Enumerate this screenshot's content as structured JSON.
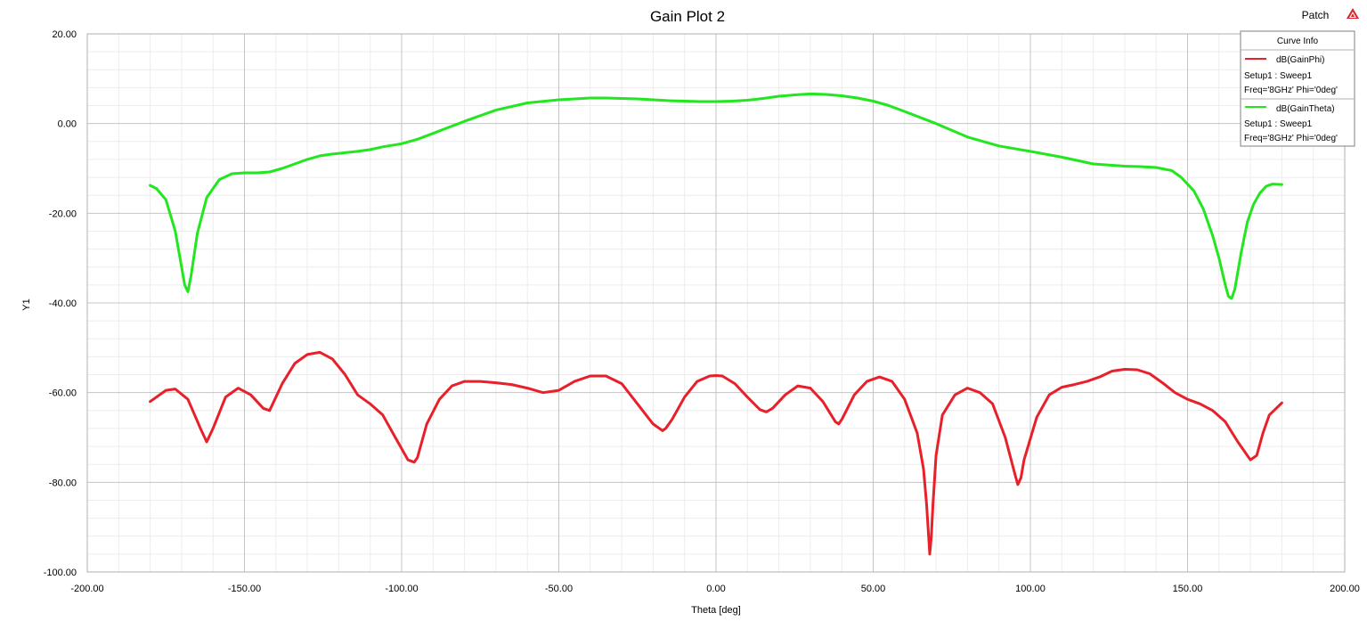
{
  "project_name": "Patch",
  "chart_data": {
    "type": "line",
    "title": "Gain Plot 2",
    "xlabel": "Theta [deg]",
    "ylabel": "Y1",
    "xlim": [
      -200,
      200
    ],
    "ylim": [
      -100,
      20
    ],
    "x_ticks": [
      -200,
      -150,
      -100,
      -50,
      0,
      50,
      100,
      150,
      200
    ],
    "x_tick_labels": [
      "-200.00",
      "-150.00",
      "-100.00",
      "-50.00",
      "0.00",
      "50.00",
      "100.00",
      "150.00",
      "200.00"
    ],
    "y_ticks": [
      20,
      0,
      -20,
      -40,
      -60,
      -80,
      -100
    ],
    "y_tick_labels": [
      "20.00",
      "0.00",
      "-20.00",
      "-40.00",
      "-60.00",
      "-80.00",
      "-100.00"
    ],
    "grid": true,
    "legend": {
      "title": "Curve Info",
      "placement": "top-right"
    },
    "series": [
      {
        "name": "dB(GainPhi)",
        "line1": "Setup1 : Sweep1",
        "line2": "Freq='8GHz' Phi='0deg'",
        "color": "#e8202a",
        "x": [
          -180,
          -175,
          -172,
          -168,
          -164,
          -162,
          -160,
          -156,
          -152,
          -148,
          -144,
          -142,
          -138,
          -134,
          -130,
          -126,
          -122,
          -118,
          -114,
          -110,
          -106,
          -102,
          -98,
          -96,
          -95,
          -94,
          -92,
          -88,
          -84,
          -80,
          -75,
          -70,
          -65,
          -60,
          -55,
          -50,
          -45,
          -40,
          -35,
          -30,
          -25,
          -20,
          -17,
          -16,
          -14,
          -10,
          -6,
          -2,
          0,
          2,
          6,
          10,
          14,
          16,
          18,
          22,
          26,
          30,
          34,
          38,
          39,
          40,
          44,
          48,
          52,
          56,
          60,
          64,
          66,
          67,
          68,
          68.5,
          69,
          70,
          72,
          76,
          80,
          84,
          88,
          92,
          95,
          96,
          97,
          98,
          102,
          106,
          110,
          114,
          118,
          122,
          126,
          130,
          134,
          138,
          142,
          146,
          150,
          154,
          158,
          162,
          166,
          170,
          172,
          174,
          176,
          180
        ],
        "y": [
          -62,
          -59.5,
          -59.2,
          -61.5,
          -68,
          -71,
          -68,
          -61,
          -59,
          -60.5,
          -63.5,
          -64,
          -58,
          -53.5,
          -51.5,
          -51,
          -52.5,
          -56,
          -60.5,
          -62.5,
          -65,
          -70,
          -75,
          -75.5,
          -74.5,
          -72,
          -67,
          -61.5,
          -58.5,
          -57.5,
          -57.5,
          -57.8,
          -58.2,
          -59,
          -60,
          -59.5,
          -57.5,
          -56.3,
          -56.3,
          -58,
          -62.5,
          -67,
          -68.5,
          -68,
          -66,
          -61,
          -57.5,
          -56.3,
          -56.2,
          -56.3,
          -58,
          -61,
          -63.8,
          -64.3,
          -63.5,
          -60.5,
          -58.5,
          -59,
          -62,
          -66.5,
          -67,
          -66,
          -60.5,
          -57.5,
          -56.5,
          -57.5,
          -61.5,
          -69,
          -77,
          -85,
          -96,
          -92,
          -85,
          -74,
          -65,
          -60.5,
          -59,
          -60,
          -62.5,
          -70,
          -78,
          -80.5,
          -79,
          -75,
          -65.5,
          -60.5,
          -58.8,
          -58.2,
          -57.5,
          -56.5,
          -55.2,
          -54.8,
          -54.9,
          -55.8,
          -57.8,
          -60,
          -61.5,
          -62.5,
          -64,
          -66.5,
          -71,
          -75,
          -74,
          -69,
          -65,
          -62.3
        ]
      },
      {
        "name": "dB(GainTheta)",
        "line1": "Setup1 : Sweep1",
        "line2": "Freq='8GHz' Phi='0deg'",
        "color": "#22e61e",
        "x": [
          -180,
          -178,
          -175,
          -172,
          -170,
          -169,
          -168,
          -167,
          -165,
          -162,
          -158,
          -154,
          -150,
          -146,
          -142,
          -138,
          -134,
          -130,
          -126,
          -122,
          -118,
          -114,
          -110,
          -106,
          -100,
          -95,
          -90,
          -80,
          -70,
          -60,
          -50,
          -45,
          -40,
          -35,
          -30,
          -25,
          -20,
          -15,
          -10,
          -5,
          0,
          5,
          10,
          15,
          20,
          25,
          30,
          35,
          40,
          45,
          50,
          55,
          60,
          70,
          80,
          90,
          100,
          110,
          120,
          130,
          135,
          140,
          145,
          148,
          152,
          155,
          158,
          160,
          162,
          163,
          164,
          165,
          166,
          167,
          169,
          171,
          173,
          175,
          177,
          180
        ],
        "y": [
          -13.8,
          -14.5,
          -17,
          -24,
          -32,
          -36,
          -37.5,
          -34,
          -24.5,
          -16.5,
          -12.5,
          -11.2,
          -11,
          -11,
          -10.8,
          -10,
          -9,
          -8,
          -7.2,
          -6.8,
          -6.5,
          -6.2,
          -5.8,
          -5.2,
          -4.5,
          -3.5,
          -2.2,
          0.5,
          3,
          4.6,
          5.3,
          5.5,
          5.7,
          5.7,
          5.6,
          5.5,
          5.3,
          5.1,
          5,
          4.9,
          4.9,
          5,
          5.2,
          5.6,
          6.1,
          6.4,
          6.6,
          6.5,
          6.2,
          5.7,
          5.0,
          4.0,
          2.7,
          0,
          -3,
          -5,
          -6.2,
          -7.5,
          -9,
          -9.5,
          -9.6,
          -9.8,
          -10.5,
          -12,
          -15,
          -19,
          -25,
          -30,
          -36,
          -38.5,
          -39,
          -37,
          -33,
          -29,
          -22,
          -18,
          -15.5,
          -14,
          -13.5,
          -13.6
        ]
      }
    ]
  }
}
